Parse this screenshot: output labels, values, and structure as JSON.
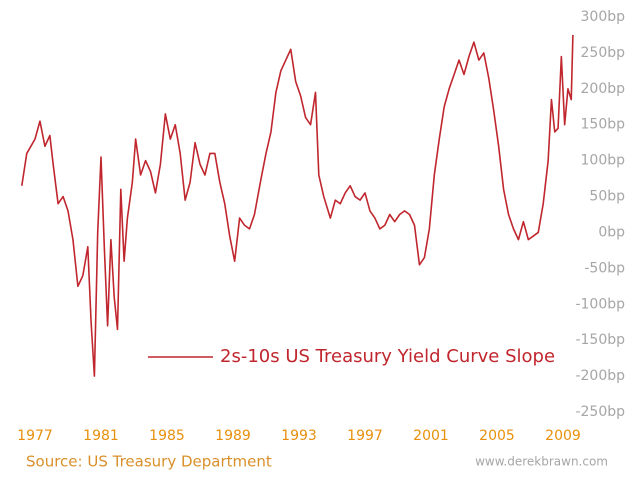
{
  "chart_data": {
    "type": "line",
    "series": [
      {
        "name": "2s-10s US Treasury Yield Curve Slope",
        "color": "#c0262d",
        "x": [
          1976.2,
          1976.5,
          1977.0,
          1977.3,
          1977.6,
          1977.9,
          1978.1,
          1978.4,
          1978.7,
          1979.0,
          1979.3,
          1979.6,
          1979.9,
          1980.2,
          1980.4,
          1980.6,
          1980.8,
          1981.0,
          1981.2,
          1981.4,
          1981.6,
          1981.8,
          1982.0,
          1982.2,
          1982.4,
          1982.6,
          1982.9,
          1983.1,
          1983.4,
          1983.7,
          1984.0,
          1984.3,
          1984.6,
          1984.9,
          1985.2,
          1985.5,
          1985.8,
          1986.1,
          1986.4,
          1986.7,
          1987.0,
          1987.3,
          1987.6,
          1987.9,
          1988.2,
          1988.5,
          1988.8,
          1989.1,
          1989.4,
          1989.7,
          1990.0,
          1990.3,
          1990.7,
          1991.0,
          1991.3,
          1991.6,
          1991.9,
          1992.2,
          1992.5,
          1992.8,
          1993.1,
          1993.4,
          1993.7,
          1994.0,
          1994.2,
          1994.5,
          1994.9,
          1995.2,
          1995.5,
          1995.8,
          1996.1,
          1996.4,
          1996.7,
          1997.0,
          1997.3,
          1997.6,
          1997.9,
          1998.2,
          1998.5,
          1998.8,
          1999.1,
          1999.4,
          1999.7,
          2000.0,
          2000.3,
          2000.6,
          2000.9,
          2001.2,
          2001.5,
          2001.8,
          2002.1,
          2002.4,
          2002.7,
          2003.0,
          2003.3,
          2003.6,
          2003.9,
          2004.2,
          2004.5,
          2004.8,
          2005.1,
          2005.4,
          2005.7,
          2006.0,
          2006.3,
          2006.6,
          2006.9,
          2007.2,
          2007.5,
          2007.8,
          2008.1,
          2008.3,
          2008.5,
          2008.7,
          2008.9,
          2009.1,
          2009.3,
          2009.5,
          2009.6
        ],
        "values": [
          65,
          110,
          130,
          155,
          120,
          135,
          95,
          40,
          50,
          30,
          -10,
          -75,
          -60,
          -20,
          -125,
          -200,
          0,
          105,
          -20,
          -130,
          -10,
          -90,
          -135,
          60,
          -40,
          20,
          70,
          130,
          80,
          100,
          85,
          55,
          95,
          165,
          130,
          150,
          110,
          45,
          70,
          125,
          95,
          80,
          110,
          110,
          70,
          40,
          -5,
          -40,
          20,
          10,
          5,
          25,
          75,
          110,
          140,
          195,
          225,
          240,
          255,
          210,
          190,
          160,
          150,
          195,
          80,
          50,
          20,
          45,
          40,
          55,
          65,
          50,
          45,
          55,
          30,
          20,
          5,
          10,
          25,
          15,
          25,
          30,
          25,
          10,
          -45,
          -35,
          5,
          80,
          130,
          175,
          200,
          220,
          240,
          220,
          245,
          265,
          240,
          250,
          215,
          170,
          120,
          60,
          25,
          5,
          -10,
          15,
          -10,
          -5,
          0,
          40,
          100,
          185,
          140,
          145,
          245,
          150,
          200,
          185,
          275
        ]
      }
    ],
    "xlim": [
      1976,
      2010.5
    ],
    "xticks": [
      1977,
      1981,
      1985,
      1989,
      1993,
      1997,
      2001,
      2005,
      2009
    ],
    "ylim": [
      -250,
      300
    ],
    "yticks": [
      {
        "value": 300,
        "label": "300bp"
      },
      {
        "value": 250,
        "label": "250bp"
      },
      {
        "value": 200,
        "label": "200bp"
      },
      {
        "value": 150,
        "label": "150bp"
      },
      {
        "value": 100,
        "label": "100bp"
      },
      {
        "value": 50,
        "label": "50bp"
      },
      {
        "value": 0,
        "label": "0bp"
      },
      {
        "value": -50,
        "label": "-50bp"
      },
      {
        "value": -100,
        "label": "-100bp"
      },
      {
        "value": -150,
        "label": "-150bp"
      },
      {
        "value": -200,
        "label": "-200bp"
      },
      {
        "value": -250,
        "label": "-250bp"
      }
    ],
    "grid": false,
    "source": "Source: US Treasury Department",
    "watermark": "www.derekbrawn.com"
  }
}
